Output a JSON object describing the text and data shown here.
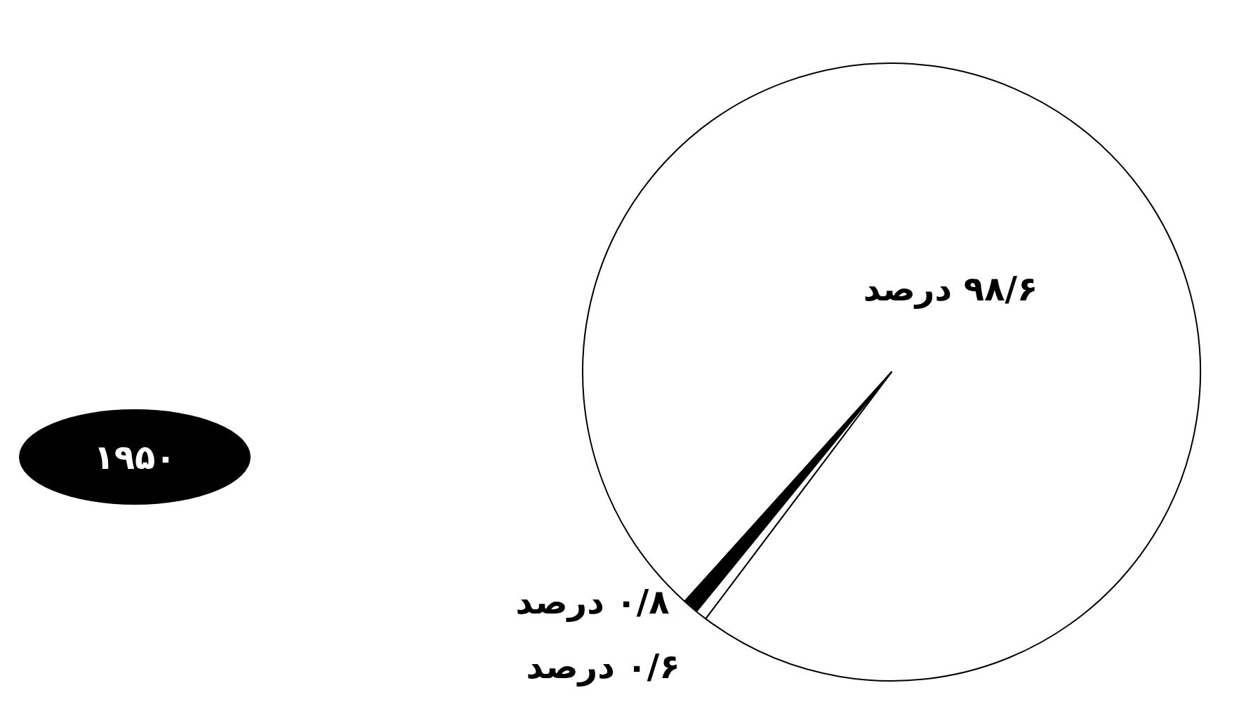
{
  "chart_data": {
    "type": "pie",
    "title": "۱۹۵۰",
    "categories": [
      null,
      null,
      null
    ],
    "values": [
      98.6,
      0.8,
      0.6
    ],
    "colors": [
      "#ffffff",
      "#000000",
      "#ffffff"
    ],
    "value_labels": [
      "۹۸/۶ درصد",
      "۰/۸ درصد",
      "۰/۶ درصد"
    ]
  }
}
